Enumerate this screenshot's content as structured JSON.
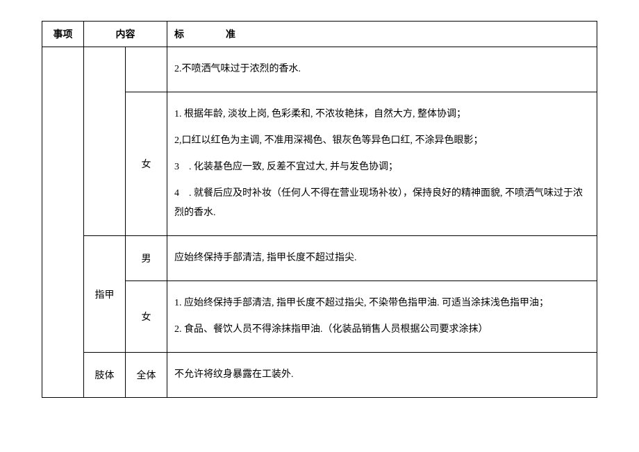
{
  "headers": {
    "item": "事项",
    "content": "内容",
    "standard": "标准"
  },
  "rows": {
    "row1": {
      "gender": "",
      "standard": "2.不喷洒气味过于浓烈的香水."
    },
    "row2": {
      "gender": "女",
      "p1": "1. 根据年龄, 淡妆上岗, 色彩柔和, 不浓妆艳抹，自然大方, 整体协调；",
      "p2": "2,口红以红色为主调, 不准用深褐色、银灰色等异色口红, 不涂异色眼影；",
      "p3": "3　. 化装基色应一致, 反差不宜过大, 并与发色协调；",
      "p4": "4　. 就餐后应及时补妆（任何人不得在营业现场补妆），保持良好的精神面貌, 不喷洒气味过于浓烈的香水."
    },
    "row3": {
      "content": "指甲",
      "gender_male": "男",
      "standard_male": "应始终保持手部清洁, 指甲长度不超过指尖.",
      "gender_female": "女",
      "p1": "1. 应始终保持手部清洁, 指甲长度不超过指尖, 不染带色指甲油. 可适当涂抹浅色指甲油；",
      "p2": "2. 食品、餐饮人员不得涂抹指甲油.（化装品销售人员根据公司要求涂抹）"
    },
    "row4": {
      "content": "肢体",
      "gender": "全体",
      "standard": "不允许将纹身暴露在工装外."
    }
  }
}
